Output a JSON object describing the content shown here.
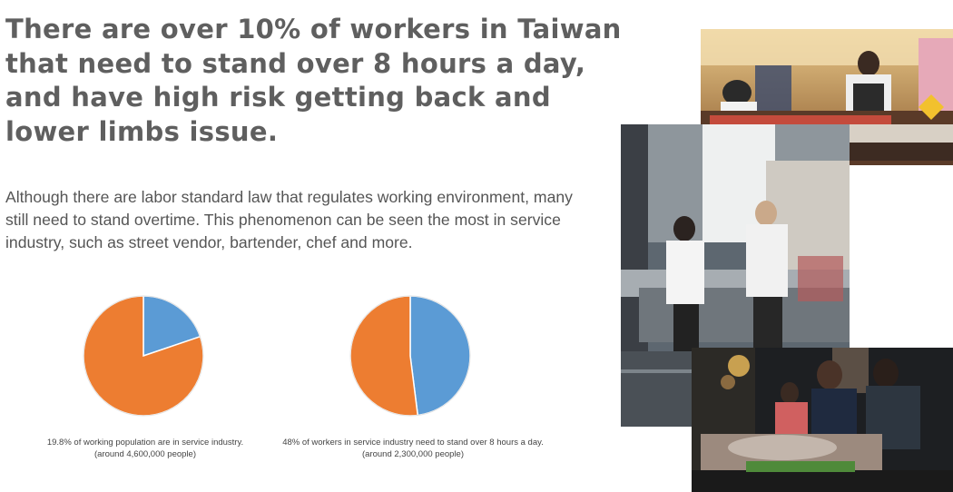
{
  "headline": "There are over 10% of workers in Taiwan that need to stand over 8 hours a day, and have high risk getting back and lower limbs issue.",
  "body": "Although there are labor standard law that regulates working environment, many still need to stand overtime. This phenomenon can be seen the most in service industry, such as street vendor, bartender, chef and more.",
  "colors": {
    "slice_blue": "#5b9bd5",
    "slice_orange": "#ed7d31",
    "headline": "#5f5f5f"
  },
  "chart_data": [
    {
      "type": "pie",
      "series": [
        {
          "values": [
            0.198,
            0.802
          ]
        }
      ],
      "colors": [
        "#5b9bd5",
        "#ed7d31"
      ],
      "caption_line1": "19.8% of working population are in service industry.",
      "caption_line2": "(around 4,600,000 people)"
    },
    {
      "type": "pie",
      "series": [
        {
          "values": [
            0.48,
            0.52
          ]
        }
      ],
      "colors": [
        "#5b9bd5",
        "#ed7d31"
      ],
      "caption_line1": "48% of workers in service industry need to stand over 8 hours a day.",
      "caption_line2": "(around 2,300,000 people)"
    }
  ],
  "photos": [
    {
      "name": "street-vendor-photo"
    },
    {
      "name": "bartender-photo"
    },
    {
      "name": "night-market-photo"
    }
  ]
}
